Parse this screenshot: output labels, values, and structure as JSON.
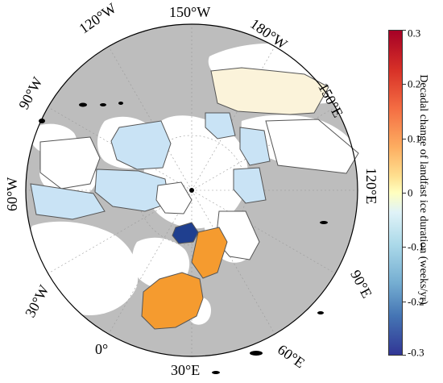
{
  "map": {
    "longitude_labels": {
      "w150": "150°W",
      "w120": "120°W",
      "w180": "180°W",
      "w90": "90°W",
      "e150": "150°E",
      "w60": "60°W",
      "e120": "120°E",
      "w30": "30°W",
      "e90": "90°E",
      "e0": "0°",
      "e60": "60°E",
      "e30": "30°E"
    },
    "colors": {
      "land": "#bdbdbd",
      "ocean": "#ffffff",
      "frame": "#ffffff",
      "region_border": "#555555",
      "positive_region": "#f59b2f",
      "negative_strong": "#1f3f8f",
      "negative_light": "#c9e3f5",
      "positive_light": "#fbf3da"
    }
  },
  "colorbar": {
    "label": "Decadal change of landfast ice duration (weeks/yr)",
    "ticks": [
      "0.3",
      "0.2",
      "0.1",
      "0",
      "-0.1",
      "-0.2",
      "-0.3"
    ],
    "min": -0.3,
    "max": 0.3,
    "colormap": "diverging red-yellow-blue"
  }
}
